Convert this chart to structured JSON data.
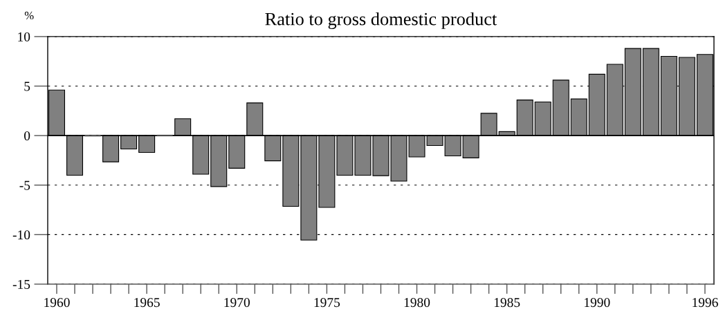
{
  "chart_data": {
    "type": "bar",
    "title": "Ratio to gross domestic product",
    "ylabel": "%",
    "categories": [
      "1960",
      null,
      null,
      null,
      null,
      "1965",
      null,
      null,
      null,
      null,
      "1970",
      null,
      null,
      null,
      null,
      "1975",
      null,
      null,
      null,
      null,
      "1980",
      null,
      null,
      null,
      null,
      "1985",
      null,
      null,
      null,
      null,
      "1990",
      null,
      null,
      null,
      null,
      null,
      "1996"
    ],
    "values": [
      4.6,
      -4.0,
      -0.1,
      -2.65,
      -1.35,
      -1.7,
      0.1,
      1.7,
      -3.9,
      -5.15,
      -3.3,
      3.3,
      -2.55,
      -7.15,
      -10.55,
      -7.25,
      -4.0,
      -4.0,
      -4.05,
      -4.6,
      -2.15,
      -1.0,
      -2.05,
      -2.25,
      2.25,
      0.4,
      3.6,
      3.4,
      5.6,
      3.7,
      6.2,
      7.2,
      8.8,
      8.8,
      8.0,
      7.9,
      8.2
    ],
    "color": "#808080",
    "ylim": [
      -15,
      10
    ],
    "yticks": [
      -15,
      -10,
      -5,
      0,
      5,
      10
    ],
    "ref_lines": [
      {
        "axis": "y",
        "value": 0,
        "color": "#000000",
        "line_style": "solid"
      }
    ],
    "grid": "y"
  }
}
